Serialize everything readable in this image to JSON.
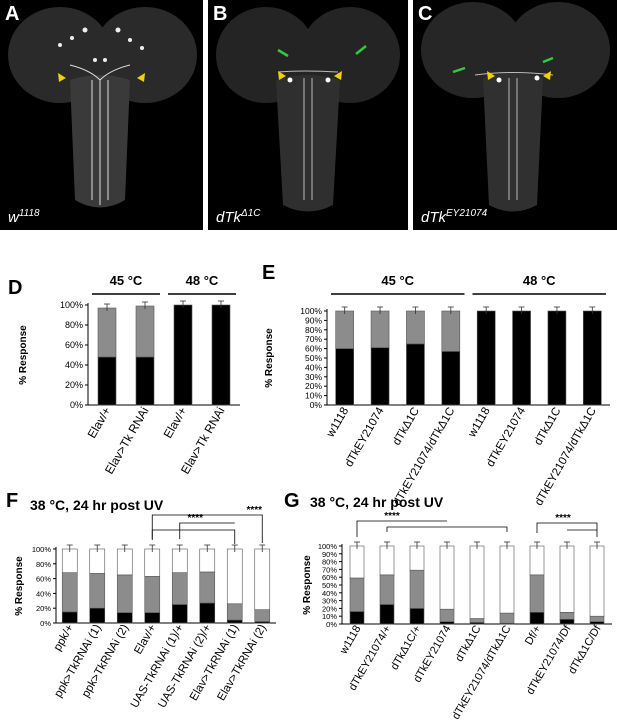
{
  "panels": {
    "A": {
      "label": "A",
      "genotype": "w",
      "genotype_sup": "1118"
    },
    "B": {
      "label": "B",
      "genotype": "dTk",
      "genotype_sup": "Δ1C"
    },
    "C": {
      "label": "C",
      "genotype": "dTk",
      "genotype_sup": "EY21074"
    },
    "D": {
      "label": "D"
    },
    "E": {
      "label": "E"
    },
    "F": {
      "label": "F",
      "title": "38 °C, 24 hr post UV"
    },
    "G": {
      "label": "G",
      "title": "38 °C, 24 hr post UV"
    }
  },
  "significance": "****",
  "colors": {
    "black": "#000000",
    "gray": "#8c8c8c",
    "white": "#ffffff",
    "arrow": "#2ecc40",
    "arrowhead": "#f5d000"
  },
  "chart_data": [
    {
      "id": "D",
      "type": "bar",
      "stacked": true,
      "ylabel": "% Response",
      "ylim": [
        0,
        100
      ],
      "y_ticks": [
        "0%",
        "20%",
        "40%",
        "60%",
        "80%",
        "100%"
      ],
      "groups": [
        {
          "label": "45 °C",
          "members": [
            0,
            1
          ]
        },
        {
          "label": "48 °C",
          "members": [
            2,
            3
          ]
        }
      ],
      "categories": [
        "Elav/+",
        "Elav>Tk RNAi",
        "Elav/+",
        "Elav>Tk RNAi"
      ],
      "cat_main": [
        "Elav/+",
        "Elav>Tk",
        "Elav/+",
        "Elav>Tk"
      ],
      "cat_sup": [
        "",
        "RNAi",
        "",
        "RNAi"
      ],
      "series": [
        {
          "color": "black",
          "values": [
            48,
            48,
            100,
            100
          ]
        },
        {
          "color": "gray",
          "values": [
            49,
            51,
            0,
            0
          ]
        }
      ],
      "totals": [
        97,
        99,
        100,
        100
      ]
    },
    {
      "id": "E",
      "type": "bar",
      "stacked": true,
      "ylabel": "% Response",
      "ylim": [
        0,
        100
      ],
      "y_ticks": [
        "0%",
        "10%",
        "20%",
        "30%",
        "40%",
        "50%",
        "60%",
        "70%",
        "80%",
        "90%",
        "100%"
      ],
      "groups": [
        {
          "label": "45 °C",
          "members": [
            0,
            1,
            2,
            3
          ]
        },
        {
          "label": "48 °C",
          "members": [
            4,
            5,
            6,
            7
          ]
        }
      ],
      "categories": [
        "w1118",
        "dTkEY21074",
        "dTkΔ1C",
        "dTkEY21074/dTkΔ1C",
        "w1118",
        "dTkEY21074",
        "dTkΔ1C",
        "dTkEY21074/dTkΔ1C"
      ],
      "cat_main": [
        "w",
        "dTk",
        "dTk",
        "dTk/dTk",
        "w",
        "dTk",
        "dTk",
        "dTk/dTk"
      ],
      "cat_sup": [
        "1118",
        "EY21074",
        "Δ1C",
        "EY21074 Δ1C",
        "1118",
        "EY21074",
        "Δ1C",
        "EY21074 Δ1C"
      ],
      "series": [
        {
          "color": "black",
          "values": [
            60,
            61,
            65,
            57,
            100,
            100,
            100,
            100
          ]
        },
        {
          "color": "gray",
          "values": [
            40,
            39,
            35,
            43,
            0,
            0,
            0,
            0
          ]
        }
      ],
      "totals": [
        100,
        100,
        100,
        100,
        100,
        100,
        100,
        100
      ]
    },
    {
      "id": "F",
      "type": "bar",
      "stacked": true,
      "ylabel": "% Response",
      "ylim": [
        0,
        100
      ],
      "y_ticks": [
        "0%",
        "20%",
        "40%",
        "60%",
        "80%",
        "100%"
      ],
      "categories": [
        "ppk/+",
        "ppk>TkRNAi (1)",
        "ppk>TkRNAi (2)",
        "Elav/+",
        "UAS-TkRNAi (1)/+",
        "UAS-TkRNAi (2)/+",
        "Elav>TkRNAi (1)",
        "Elav>TkRNAi (2)"
      ],
      "cat_main": [
        "ppk/+",
        "ppk>Tk",
        "ppk>Tk",
        "Elav/+",
        "UAS-Tk /+",
        "UAS-Tk /+",
        "Elav>Tk",
        "Elav>Tk"
      ],
      "cat_sup": [
        "",
        "RNAi (1)",
        "RNAi (2)",
        "",
        "RNAi (1)",
        "RNAi (2)",
        "RNAi (1)",
        "RNAi (2)"
      ],
      "series": [
        {
          "color": "black",
          "values": [
            15,
            20,
            14,
            14,
            25,
            27,
            4,
            2
          ]
        },
        {
          "color": "gray",
          "values": [
            53,
            47,
            51,
            49,
            43,
            42,
            22,
            16
          ]
        },
        {
          "color": "white",
          "values": [
            32,
            33,
            35,
            37,
            32,
            31,
            74,
            82
          ]
        }
      ],
      "totals": [
        100,
        100,
        100,
        100,
        100,
        100,
        100,
        100
      ]
    },
    {
      "id": "G",
      "type": "bar",
      "stacked": true,
      "ylabel": "% Response",
      "ylim": [
        0,
        100
      ],
      "y_ticks": [
        "0%",
        "10%",
        "20%",
        "30%",
        "40%",
        "50%",
        "60%",
        "70%",
        "80%",
        "90%",
        "100%"
      ],
      "categories": [
        "w1118",
        "dTkEY21074/+",
        "dTkΔ1C/+",
        "dTkEY21074",
        "dTkΔ1C",
        "dTkEY21074/dTkΔ1C",
        "Df/+",
        "dTkEY21074/Df",
        "dTkΔ1C/Df"
      ],
      "series": [
        {
          "color": "black",
          "values": [
            16,
            25,
            20,
            3,
            2,
            1,
            15,
            6,
            3
          ]
        },
        {
          "color": "gray",
          "values": [
            43,
            38,
            49,
            16,
            5,
            13,
            48,
            9,
            7
          ]
        },
        {
          "color": "white",
          "values": [
            41,
            37,
            31,
            81,
            93,
            86,
            37,
            85,
            90
          ]
        }
      ],
      "totals": [
        100,
        100,
        100,
        100,
        100,
        100,
        100,
        100,
        100
      ]
    }
  ]
}
